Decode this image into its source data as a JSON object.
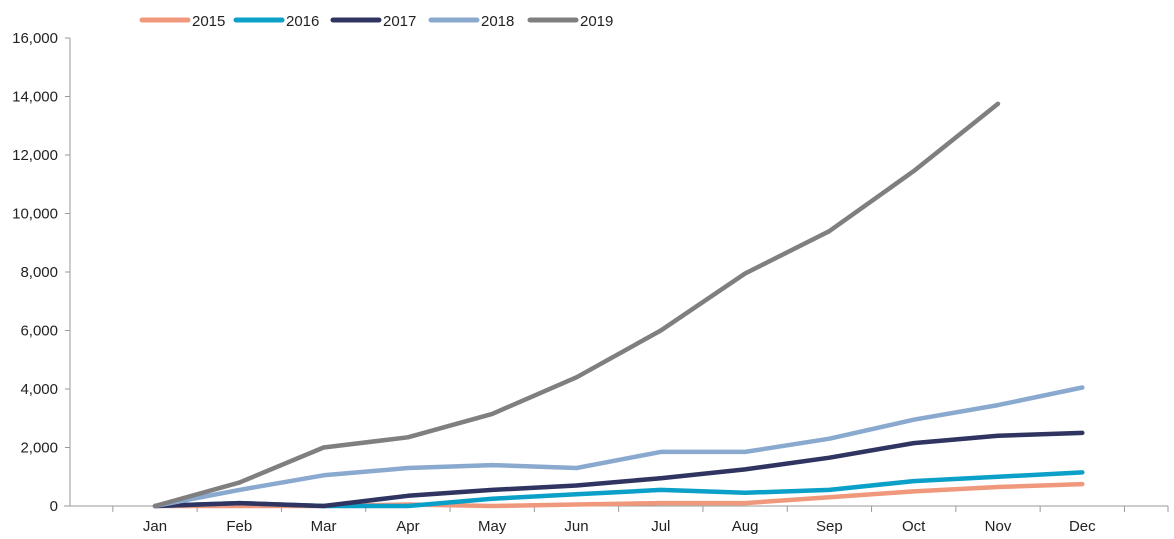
{
  "chart_data": {
    "type": "line",
    "categories": [
      "Jan",
      "Feb",
      "Mar",
      "Apr",
      "May",
      "Jun",
      "Jul",
      "Aug",
      "Sep",
      "Oct",
      "Nov",
      "Dec"
    ],
    "ylim": [
      0,
      16000
    ],
    "yticks": [
      0,
      2000,
      4000,
      6000,
      8000,
      10000,
      12000,
      14000,
      16000
    ],
    "ytick_labels": [
      "0",
      "2,000",
      "4,000",
      "6,000",
      "8,000",
      "10,000",
      "12,000",
      "14,000",
      "16,000"
    ],
    "grid": false,
    "legend_position": "top",
    "series": [
      {
        "name": "2015",
        "color": "#f0987c",
        "values": [
          0,
          0,
          0,
          50,
          0,
          50,
          100,
          100,
          300,
          500,
          650,
          750
        ]
      },
      {
        "name": "2016",
        "color": "#0aa0c8",
        "values": [
          0,
          100,
          0,
          0,
          250,
          400,
          550,
          450,
          550,
          850,
          1000,
          1150
        ]
      },
      {
        "name": "2017",
        "color": "#2f3460",
        "values": [
          0,
          100,
          0,
          350,
          550,
          700,
          950,
          1250,
          1650,
          2150,
          2400,
          2500
        ]
      },
      {
        "name": "2018",
        "color": "#8aa9cf",
        "values": [
          0,
          550,
          1050,
          1300,
          1400,
          1300,
          1850,
          1850,
          2300,
          2950,
          3450,
          4050
        ]
      },
      {
        "name": "2019",
        "color": "#7f7f7f",
        "values": [
          0,
          800,
          2000,
          2350,
          3150,
          4400,
          6000,
          7950,
          9400,
          11450,
          13750,
          null
        ]
      }
    ]
  }
}
